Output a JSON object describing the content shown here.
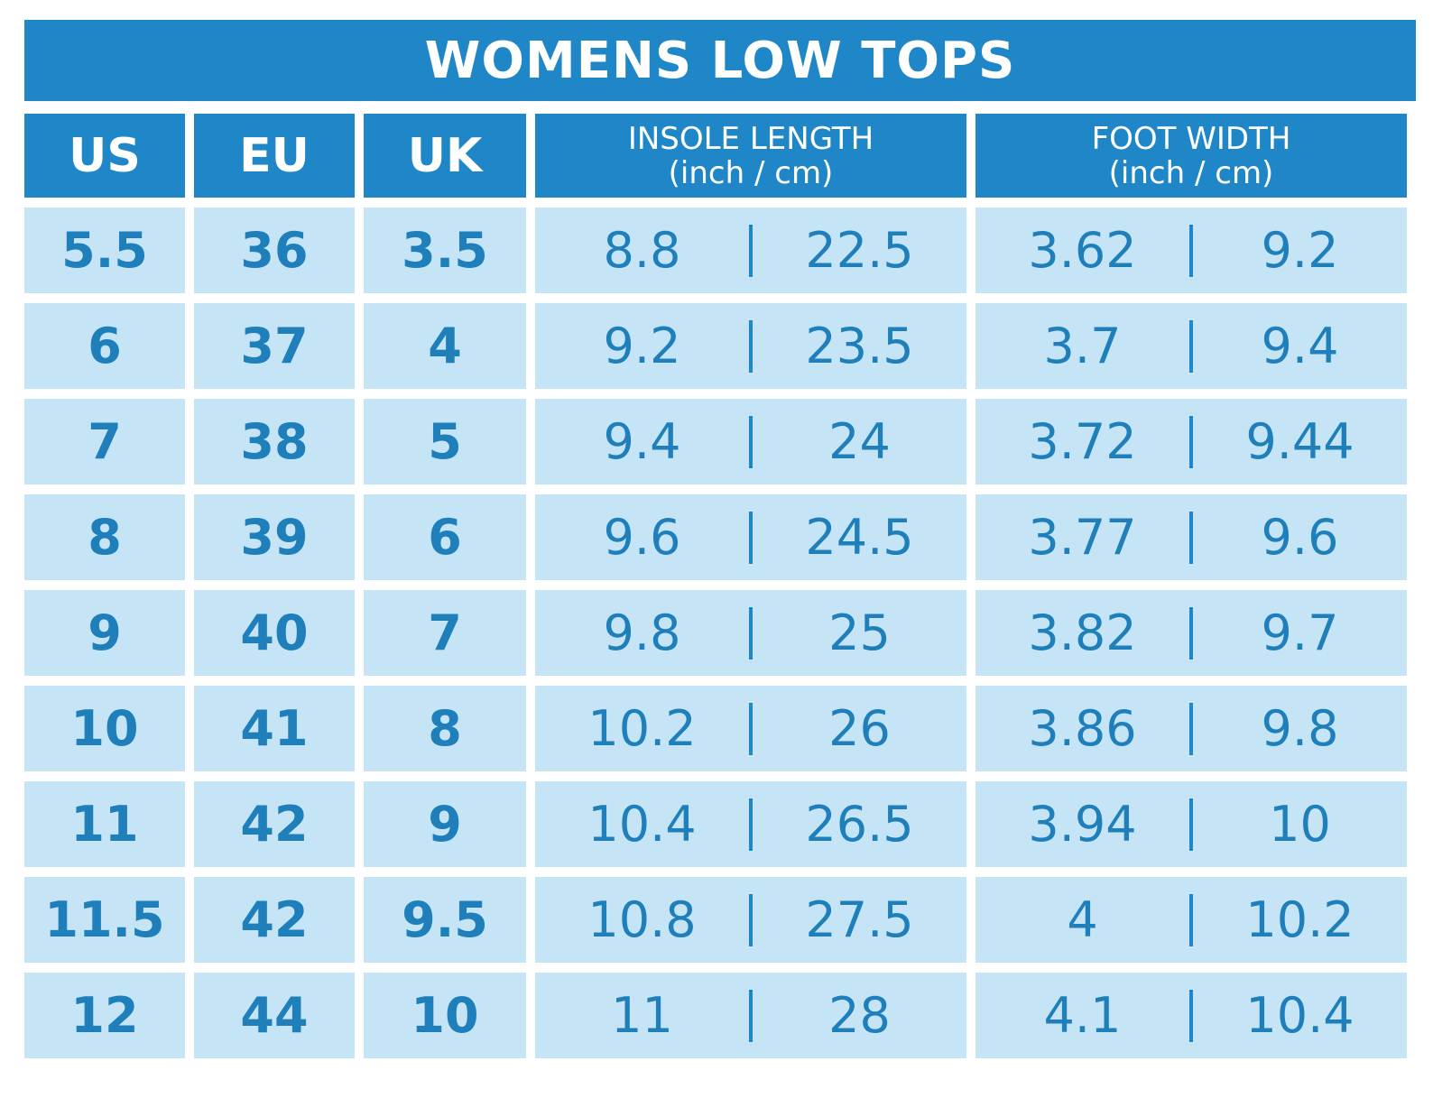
{
  "title": "WOMENS LOW TOPS",
  "headers": {
    "us": "US",
    "eu": "EU",
    "uk": "UK",
    "insole_length": "INSOLE LENGTH",
    "insole_length_unit": "(inch / cm)",
    "foot_width": "FOOT WIDTH",
    "foot_width_unit": "(inch / cm)"
  },
  "rows": [
    {
      "us": "5.5",
      "eu": "36",
      "uk": "3.5",
      "insole_in": "8.8",
      "insole_cm": "22.5",
      "width_in": "3.62",
      "width_cm": "9.2"
    },
    {
      "us": "6",
      "eu": "37",
      "uk": "4",
      "insole_in": "9.2",
      "insole_cm": "23.5",
      "width_in": "3.7",
      "width_cm": "9.4"
    },
    {
      "us": "7",
      "eu": "38",
      "uk": "5",
      "insole_in": "9.4",
      "insole_cm": "24",
      "width_in": "3.72",
      "width_cm": "9.44"
    },
    {
      "us": "8",
      "eu": "39",
      "uk": "6",
      "insole_in": "9.6",
      "insole_cm": "24.5",
      "width_in": "3.77",
      "width_cm": "9.6"
    },
    {
      "us": "9",
      "eu": "40",
      "uk": "7",
      "insole_in": "9.8",
      "insole_cm": "25",
      "width_in": "3.82",
      "width_cm": "9.7"
    },
    {
      "us": "10",
      "eu": "41",
      "uk": "8",
      "insole_in": "10.2",
      "insole_cm": "26",
      "width_in": "3.86",
      "width_cm": "9.8"
    },
    {
      "us": "11",
      "eu": "42",
      "uk": "9",
      "insole_in": "10.4",
      "insole_cm": "26.5",
      "width_in": "3.94",
      "width_cm": "10"
    },
    {
      "us": "11.5",
      "eu": "42",
      "uk": "9.5",
      "insole_in": "10.8",
      "insole_cm": "27.5",
      "width_in": "4",
      "width_cm": "10.2"
    },
    {
      "us": "12",
      "eu": "44",
      "uk": "10",
      "insole_in": "11",
      "insole_cm": "28",
      "width_in": "4.1",
      "width_cm": "10.4"
    }
  ],
  "colors": {
    "header_bg": "#1f87c7",
    "cell_bg": "#c5e5f7",
    "cell_text": "#1f7fba",
    "header_text": "#ffffff"
  }
}
